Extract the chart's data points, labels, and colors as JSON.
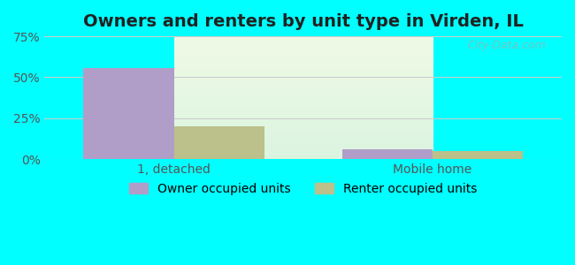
{
  "title": "Owners and renters by unit type in Virden, IL",
  "categories": [
    "1, detached",
    "Mobile home"
  ],
  "owner_values": [
    55.5,
    6.0
  ],
  "renter_values": [
    20.0,
    5.0
  ],
  "owner_color": "#b09ec9",
  "renter_color": "#bcc08a",
  "ylim": [
    0,
    75
  ],
  "yticks": [
    0,
    25,
    50,
    75
  ],
  "yticklabels": [
    "0%",
    "25%",
    "50%",
    "75%"
  ],
  "background_top": "#e8f5e0",
  "background_bottom": "#d0f5e0",
  "outer_bg": "#00ffff",
  "bar_width": 0.35,
  "title_fontsize": 14,
  "tick_fontsize": 10,
  "legend_fontsize": 10,
  "watermark": "City-Data.com",
  "grid_color": "#cccccc"
}
